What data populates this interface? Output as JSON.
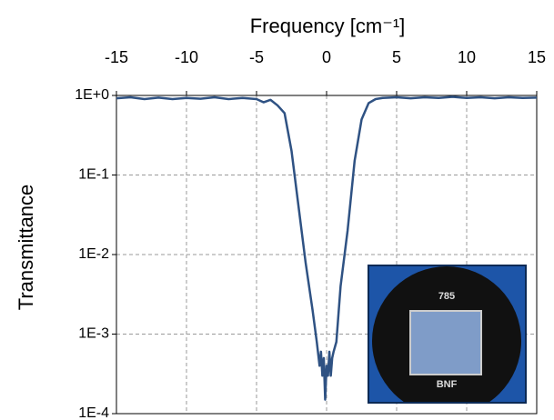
{
  "chart_data": {
    "type": "line",
    "xlabel": "Frequency [cm⁻¹]",
    "ylabel": "Transmittance",
    "x": [
      -15,
      -14,
      -13,
      -12,
      -11,
      -10,
      -9,
      -8,
      -7,
      -6,
      -5,
      -4.5,
      -4,
      -3.5,
      -3,
      -2.5,
      -2,
      -1.5,
      -1,
      -0.7,
      -0.5,
      -0.4,
      -0.3,
      -0.2,
      -0.1,
      0,
      0.1,
      0.2,
      0.3,
      0.4,
      0.5,
      0.7,
      1,
      1.5,
      2,
      2.5,
      3,
      3.5,
      4,
      5,
      6,
      7,
      8,
      9,
      10,
      11,
      12,
      13,
      14,
      15
    ],
    "values": [
      0.92,
      0.95,
      0.9,
      0.94,
      0.9,
      0.93,
      0.91,
      0.95,
      0.9,
      0.93,
      0.9,
      0.82,
      0.88,
      0.75,
      0.6,
      0.2,
      0.04,
      0.008,
      0.002,
      0.0008,
      0.0004,
      0.0006,
      0.0003,
      0.0005,
      0.00015,
      0.0004,
      0.0003,
      0.0006,
      0.0003,
      0.0005,
      0.0006,
      0.0008,
      0.004,
      0.02,
      0.15,
      0.5,
      0.8,
      0.9,
      0.93,
      0.95,
      0.92,
      0.95,
      0.93,
      0.96,
      0.93,
      0.95,
      0.92,
      0.95,
      0.93,
      0.94
    ],
    "color": "#2f5283",
    "xlim": [
      -15,
      15
    ],
    "xticks": [
      -15,
      -10,
      -5,
      0,
      5,
      10,
      15
    ],
    "x_axis_position": "top",
    "ylim": [
      0.0001,
      1
    ],
    "log_y": true,
    "yticks": [
      {
        "value": 0.0001,
        "label": "1E-4"
      },
      {
        "value": 0.001,
        "label": "1E-3"
      },
      {
        "value": 0.01,
        "label": "1E-2"
      },
      {
        "value": 0.1,
        "label": "1E-1"
      },
      {
        "value": 1,
        "label": "1E+0"
      }
    ],
    "grid": true,
    "annotations": [
      "785",
      "BNF"
    ]
  }
}
